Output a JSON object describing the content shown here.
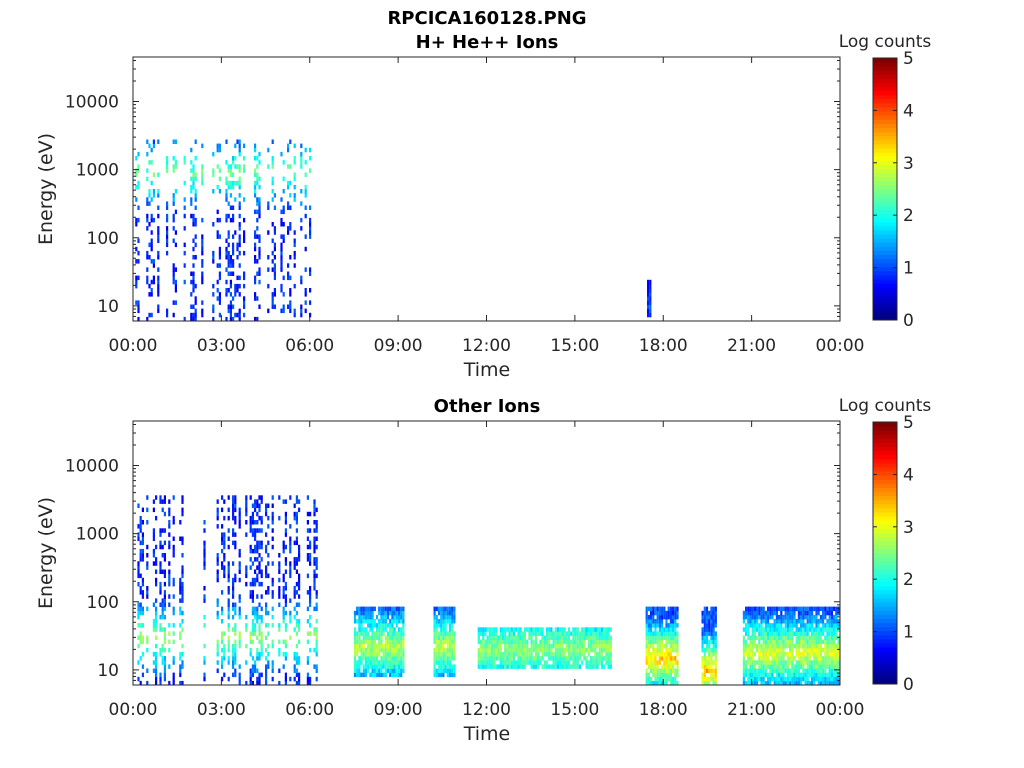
{
  "figure": {
    "filename": "RPCICA160128.PNG"
  },
  "colors": {
    "colormap": "jet",
    "axis_line": "#262626",
    "background": "#ffffff"
  },
  "chart_data": [
    {
      "type": "heatmap",
      "title": "H+ He++ Ions",
      "xlabel": "Time",
      "ylabel": "Energy (eV)",
      "x_ticks": [
        "00:00",
        "03:00",
        "06:00",
        "09:00",
        "12:00",
        "15:00",
        "18:00",
        "21:00",
        "00:00"
      ],
      "xlim_hours": [
        0,
        24
      ],
      "y_ticks": [
        "10",
        "100",
        "1000",
        "10000"
      ],
      "y_tick_values": [
        10,
        100,
        1000,
        10000
      ],
      "ylim": [
        6,
        45000
      ],
      "y_scale": "log",
      "colorbar": {
        "label": "Log counts",
        "ticks": [
          "0",
          "1",
          "2",
          "3",
          "4",
          "5"
        ],
        "range": [
          0,
          5
        ]
      },
      "intervals": [
        {
          "start_h": 0.0,
          "end_h": 6.2,
          "e_min": 6,
          "e_max": 2800,
          "level_low": 0.8,
          "level_high": 2.4,
          "peak_e": 900,
          "density": 0.35
        },
        {
          "start_h": 17.45,
          "end_h": 17.55,
          "e_min": 7,
          "e_max": 25,
          "level_low": 0.5,
          "level_high": 1.0,
          "peak_e": 12,
          "density": 1.0
        }
      ]
    },
    {
      "type": "heatmap",
      "title": "Other Ions",
      "xlabel": "Time",
      "ylabel": "Energy (eV)",
      "x_ticks": [
        "00:00",
        "03:00",
        "06:00",
        "09:00",
        "12:00",
        "15:00",
        "18:00",
        "21:00",
        "00:00"
      ],
      "xlim_hours": [
        0,
        24
      ],
      "y_ticks": [
        "10",
        "100",
        "1000",
        "10000"
      ],
      "y_tick_values": [
        10,
        100,
        1000,
        10000
      ],
      "ylim": [
        6,
        45000
      ],
      "y_scale": "log",
      "colorbar": {
        "label": "Log counts",
        "ticks": [
          "0",
          "1",
          "2",
          "3",
          "4",
          "5"
        ],
        "range": [
          0,
          5
        ]
      },
      "intervals": [
        {
          "start_h": 0.0,
          "end_h": 6.2,
          "e_min": 6,
          "e_max": 3500,
          "level_low": 0.8,
          "level_high": 2.6,
          "peak_e": 30,
          "density": 0.45
        },
        {
          "start_h": 7.5,
          "end_h": 9.2,
          "e_min": 8,
          "e_max": 85,
          "level_low": 1.0,
          "level_high": 2.8,
          "peak_e": 22,
          "density": 0.9
        },
        {
          "start_h": 10.2,
          "end_h": 10.9,
          "e_min": 8,
          "e_max": 85,
          "level_low": 1.0,
          "level_high": 2.8,
          "peak_e": 22,
          "density": 0.9
        },
        {
          "start_h": 11.7,
          "end_h": 16.2,
          "e_min": 11,
          "e_max": 42,
          "level_low": 1.2,
          "level_high": 2.6,
          "peak_e": 20,
          "density": 0.9
        },
        {
          "start_h": 17.4,
          "end_h": 18.5,
          "e_min": 6,
          "e_max": 85,
          "level_low": 1.0,
          "level_high": 3.4,
          "peak_e": 15,
          "density": 0.9
        },
        {
          "start_h": 19.3,
          "end_h": 19.8,
          "e_min": 6,
          "e_max": 85,
          "level_low": 1.0,
          "level_high": 3.5,
          "peak_e": 10,
          "density": 0.9
        },
        {
          "start_h": 20.7,
          "end_h": 24.0,
          "e_min": 6,
          "e_max": 85,
          "level_low": 1.0,
          "level_high": 3.0,
          "peak_e": 18,
          "density": 0.9
        }
      ]
    }
  ]
}
